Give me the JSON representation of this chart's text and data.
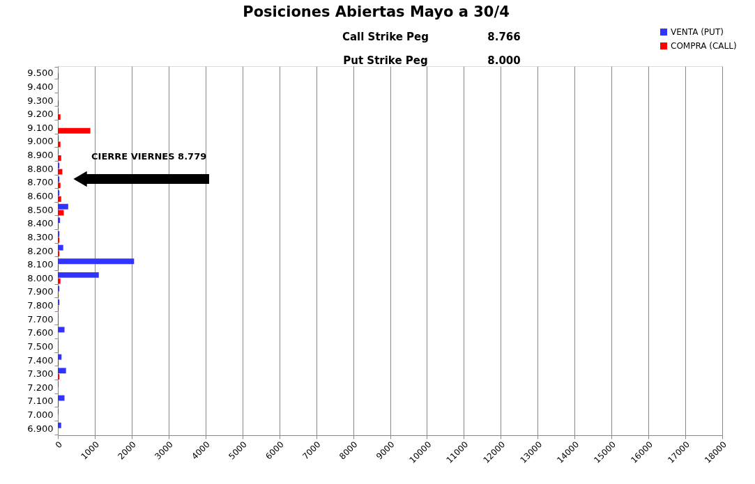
{
  "chart_data": {
    "type": "bar",
    "orientation": "horizontal",
    "title": "Posiciones Abiertas Mayo a 30/4",
    "annotations": [
      "Call Strike Peg",
      "8.766",
      "Put Strike Peg",
      "8.000",
      "CIERRE VIERNES 8.779"
    ],
    "categories": [
      "9.500",
      "9.400",
      "9.300",
      "9.200",
      "9.100",
      "9.000",
      "8.900",
      "8.800",
      "8.700",
      "8.600",
      "8.500",
      "8.400",
      "8.300",
      "8.200",
      "8.100",
      "8.000",
      "7.900",
      "7.800",
      "7.700",
      "7.600",
      "7.500",
      "7.400",
      "7.300",
      "7.200",
      "7.100",
      "7.000",
      "6.900"
    ],
    "series": [
      {
        "name": "VENTA (PUT)",
        "color": "#3333ff",
        "values": [
          0,
          0,
          0,
          20,
          0,
          20,
          15,
          40,
          40,
          40,
          280,
          60,
          40,
          145,
          2065,
          1110,
          40,
          40,
          15,
          180,
          15,
          100,
          220,
          15,
          180,
          15,
          90
        ]
      },
      {
        "name": "COMPRA (CALL)",
        "color": "#ff0000",
        "values": [
          20,
          0,
          20,
          70,
          880,
          70,
          90,
          120,
          70,
          90,
          160,
          20,
          40,
          40,
          20,
          70,
          20,
          20,
          15,
          0,
          15,
          20,
          40,
          0,
          20,
          0,
          0
        ]
      }
    ],
    "xlim": [
      0,
      18000
    ],
    "xticks": [
      0,
      1000,
      2000,
      3000,
      4000,
      5000,
      6000,
      7000,
      8000,
      9000,
      10000,
      11000,
      12000,
      13000,
      14000,
      15000,
      16000,
      17000,
      18000
    ],
    "grid": "x",
    "legend": "top right"
  }
}
